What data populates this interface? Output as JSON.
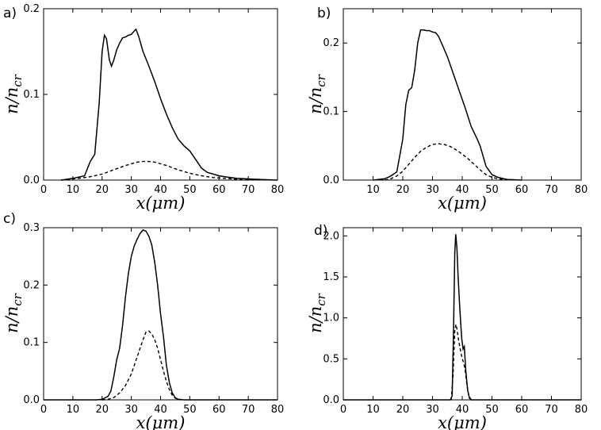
{
  "chart_data": [
    {
      "panel": "a)",
      "type": "line",
      "xlabel": "x(μm)",
      "ylabel": "n/n_cr",
      "xlim": [
        0,
        80
      ],
      "ylim": [
        0,
        0.2
      ],
      "xticks": [
        0,
        10,
        20,
        30,
        40,
        50,
        60,
        70,
        80
      ],
      "yticks": [
        0.0,
        0.1,
        0.2
      ],
      "ytick_labels": [
        "0.0",
        "0.1",
        "0.2"
      ],
      "series": [
        {
          "name": "solid",
          "style": "solid",
          "points": [
            [
              6,
              0
            ],
            [
              10,
              0.002
            ],
            [
              14,
              0.005
            ],
            [
              16,
              0.022
            ],
            [
              17.5,
              0.03
            ],
            [
              19,
              0.09
            ],
            [
              20,
              0.15
            ],
            [
              20.8,
              0.169
            ],
            [
              21.5,
              0.165
            ],
            [
              22.5,
              0.14
            ],
            [
              23.2,
              0.133
            ],
            [
              24,
              0.14
            ],
            [
              25,
              0.152
            ],
            [
              26,
              0.16
            ],
            [
              27,
              0.166
            ],
            [
              28,
              0.167
            ],
            [
              29,
              0.169
            ],
            [
              30,
              0.17
            ],
            [
              31,
              0.174
            ],
            [
              31.6,
              0.176
            ],
            [
              32.5,
              0.168
            ],
            [
              34,
              0.15
            ],
            [
              36,
              0.133
            ],
            [
              38,
              0.115
            ],
            [
              40,
              0.095
            ],
            [
              42,
              0.077
            ],
            [
              44,
              0.061
            ],
            [
              46,
              0.048
            ],
            [
              48,
              0.04
            ],
            [
              50,
              0.034
            ],
            [
              52,
              0.024
            ],
            [
              54,
              0.014
            ],
            [
              56,
              0.009
            ],
            [
              58,
              0.007
            ],
            [
              60,
              0.005
            ],
            [
              62,
              0.004
            ],
            [
              66,
              0.002
            ],
            [
              72,
              0.001
            ],
            [
              80,
              0
            ]
          ]
        },
        {
          "name": "dashed",
          "style": "dashed",
          "points": [
            [
              6,
              0
            ],
            [
              12,
              0.002
            ],
            [
              16,
              0.004
            ],
            [
              20,
              0.007
            ],
            [
              24,
              0.012
            ],
            [
              28,
              0.017
            ],
            [
              32,
              0.021
            ],
            [
              35,
              0.022
            ],
            [
              38,
              0.021
            ],
            [
              42,
              0.017
            ],
            [
              46,
              0.012
            ],
            [
              50,
              0.008
            ],
            [
              54,
              0.005
            ],
            [
              58,
              0.003
            ],
            [
              62,
              0.002
            ],
            [
              66,
              0.001
            ],
            [
              70,
              0
            ]
          ]
        }
      ]
    },
    {
      "panel": "b)",
      "type": "line",
      "xlabel": "x(μm)",
      "ylabel": "n/n_cr",
      "xlim": [
        0,
        80
      ],
      "ylim": [
        0,
        0.25
      ],
      "xticks": [
        10,
        20,
        30,
        40,
        50,
        60,
        70,
        80
      ],
      "yticks": [
        0.0,
        0.1,
        0.2
      ],
      "ytick_labels": [
        "0.0",
        "0.1",
        "0.2"
      ],
      "series": [
        {
          "name": "solid",
          "style": "solid",
          "points": [
            [
              10,
              0
            ],
            [
              14,
              0.002
            ],
            [
              16,
              0.006
            ],
            [
              18,
              0.012
            ],
            [
              20,
              0.06
            ],
            [
              21,
              0.11
            ],
            [
              22,
              0.131
            ],
            [
              23,
              0.135
            ],
            [
              24,
              0.16
            ],
            [
              25,
              0.2
            ],
            [
              26,
              0.219
            ],
            [
              27,
              0.219
            ],
            [
              28,
              0.218
            ],
            [
              29,
              0.218
            ],
            [
              30,
              0.216
            ],
            [
              31,
              0.215
            ],
            [
              32,
              0.21
            ],
            [
              33,
              0.2
            ],
            [
              35,
              0.18
            ],
            [
              37,
              0.155
            ],
            [
              39,
              0.13
            ],
            [
              41,
              0.105
            ],
            [
              43,
              0.078
            ],
            [
              45,
              0.06
            ],
            [
              46,
              0.05
            ],
            [
              47,
              0.035
            ],
            [
              48,
              0.02
            ],
            [
              50,
              0.008
            ],
            [
              52,
              0.004
            ],
            [
              55,
              0.001
            ],
            [
              60,
              0
            ]
          ]
        },
        {
          "name": "dashed",
          "style": "dashed",
          "points": [
            [
              14,
              0
            ],
            [
              16,
              0.002
            ],
            [
              18,
              0.006
            ],
            [
              20,
              0.013
            ],
            [
              22,
              0.023
            ],
            [
              24,
              0.033
            ],
            [
              26,
              0.042
            ],
            [
              28,
              0.048
            ],
            [
              30,
              0.052
            ],
            [
              32,
              0.053
            ],
            [
              34,
              0.052
            ],
            [
              36,
              0.049
            ],
            [
              38,
              0.044
            ],
            [
              40,
              0.038
            ],
            [
              42,
              0.031
            ],
            [
              44,
              0.023
            ],
            [
              46,
              0.015
            ],
            [
              48,
              0.008
            ],
            [
              50,
              0.004
            ],
            [
              52,
              0.002
            ],
            [
              56,
              0
            ]
          ]
        }
      ]
    },
    {
      "panel": "c)",
      "type": "line",
      "xlabel": "x(μm)",
      "ylabel": "n/n_cr",
      "xlim": [
        0,
        80
      ],
      "ylim": [
        0,
        0.3
      ],
      "xticks": [
        0,
        10,
        20,
        30,
        40,
        50,
        60,
        70,
        80
      ],
      "yticks": [
        0.0,
        0.1,
        0.2,
        0.3
      ],
      "ytick_labels": [
        "0.0",
        "0.1",
        "0.2",
        "0.3"
      ],
      "series": [
        {
          "name": "solid",
          "style": "solid",
          "points": [
            [
              0,
              0
            ],
            [
              18,
              0
            ],
            [
              20,
              0.001
            ],
            [
              22,
              0.006
            ],
            [
              23,
              0.015
            ],
            [
              24,
              0.04
            ],
            [
              25,
              0.07
            ],
            [
              26,
              0.09
            ],
            [
              27,
              0.13
            ],
            [
              28,
              0.18
            ],
            [
              29,
              0.22
            ],
            [
              30,
              0.25
            ],
            [
              31,
              0.268
            ],
            [
              32,
              0.28
            ],
            [
              33,
              0.29
            ],
            [
              34,
              0.296
            ],
            [
              35,
              0.294
            ],
            [
              36,
              0.285
            ],
            [
              37,
              0.27
            ],
            [
              38,
              0.24
            ],
            [
              39,
              0.2
            ],
            [
              40,
              0.15
            ],
            [
              41,
              0.11
            ],
            [
              42,
              0.06
            ],
            [
              43,
              0.03
            ],
            [
              44,
              0.012
            ],
            [
              45,
              0.004
            ],
            [
              46,
              0.001
            ],
            [
              48,
              0
            ],
            [
              80,
              0
            ]
          ]
        },
        {
          "name": "dashed",
          "style": "dashed",
          "points": [
            [
              20,
              0
            ],
            [
              22,
              0.001
            ],
            [
              24,
              0.004
            ],
            [
              26,
              0.012
            ],
            [
              28,
              0.025
            ],
            [
              30,
              0.045
            ],
            [
              32,
              0.075
            ],
            [
              33,
              0.09
            ],
            [
              34,
              0.105
            ],
            [
              35,
              0.118
            ],
            [
              36,
              0.12
            ],
            [
              37,
              0.115
            ],
            [
              38,
              0.105
            ],
            [
              39,
              0.09
            ],
            [
              40,
              0.07
            ],
            [
              41,
              0.05
            ],
            [
              42,
              0.032
            ],
            [
              43,
              0.018
            ],
            [
              44,
              0.008
            ],
            [
              45,
              0.003
            ],
            [
              46,
              0.001
            ],
            [
              47,
              0
            ]
          ]
        }
      ]
    },
    {
      "panel": "d)",
      "type": "line",
      "xlabel": "x(μm)",
      "ylabel": "n/n_cr",
      "xlim": [
        0,
        80
      ],
      "ylim": [
        0,
        2.1
      ],
      "xticks": [
        0,
        10,
        20,
        30,
        40,
        50,
        60,
        70,
        80
      ],
      "yticks": [
        0.0,
        0.5,
        1.0,
        1.5,
        2.0
      ],
      "ytick_labels": [
        "0.0",
        "0.5",
        "1.0",
        "1.5",
        "2.0"
      ],
      "series": [
        {
          "name": "solid",
          "style": "solid",
          "points": [
            [
              0,
              0
            ],
            [
              36,
              0
            ],
            [
              36.6,
              0.05
            ],
            [
              37.1,
              0.9
            ],
            [
              37.5,
              1.8
            ],
            [
              37.8,
              2.02
            ],
            [
              38.2,
              1.85
            ],
            [
              38.6,
              1.5
            ],
            [
              39.2,
              1.1
            ],
            [
              39.8,
              0.75
            ],
            [
              40.3,
              0.62
            ],
            [
              40.7,
              0.65
            ],
            [
              41.2,
              0.35
            ],
            [
              41.8,
              0.12
            ],
            [
              42.4,
              0.02
            ],
            [
              43,
              0
            ],
            [
              80,
              0
            ]
          ]
        },
        {
          "name": "dashed",
          "style": "dashed",
          "points": [
            [
              36.3,
              0
            ],
            [
              36.9,
              0.3
            ],
            [
              37.5,
              0.85
            ],
            [
              37.9,
              0.92
            ],
            [
              38.3,
              0.85
            ],
            [
              38.8,
              0.72
            ],
            [
              39.4,
              0.6
            ],
            [
              40,
              0.5
            ],
            [
              40.5,
              0.45
            ],
            [
              41,
              0.35
            ],
            [
              41.6,
              0.18
            ],
            [
              42.2,
              0.05
            ],
            [
              43,
              0
            ]
          ]
        }
      ]
    }
  ]
}
